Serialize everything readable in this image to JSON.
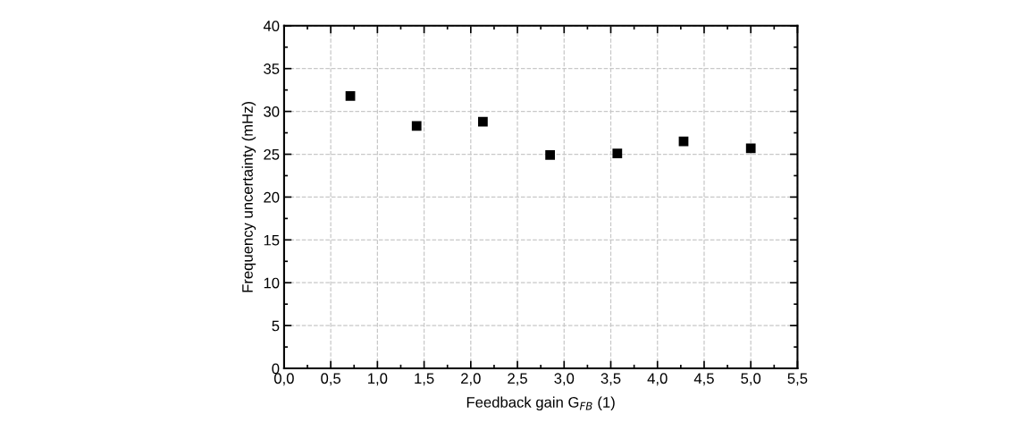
{
  "chart_data": {
    "type": "scatter",
    "xlabel": "Feedback gain G$_{FB}$ (1)",
    "ylabel": "Frequency uncertainty (mHz)",
    "x": [
      0.71,
      1.42,
      2.13,
      2.85,
      3.57,
      4.28,
      5.0
    ],
    "series": [
      {
        "color": "#000000",
        "values": [
          31.8,
          28.3,
          28.8,
          24.9,
          25.1,
          26.5,
          25.7
        ]
      }
    ],
    "marker": "square",
    "grid": true,
    "xlim": [
      0,
      5.5
    ],
    "ylim": [
      0,
      40
    ],
    "xticks": [
      {
        "value": 0,
        "label": "0,0"
      },
      {
        "value": 0.5,
        "label": "0,5"
      },
      {
        "value": 1,
        "label": "1,0"
      },
      {
        "value": 1.5,
        "label": "1,5"
      },
      {
        "value": 2,
        "label": "2,0"
      },
      {
        "value": 2.5,
        "label": "2,5"
      },
      {
        "value": 3,
        "label": "3,0"
      },
      {
        "value": 3.5,
        "label": "3,5"
      },
      {
        "value": 4,
        "label": "4,0"
      },
      {
        "value": 4.5,
        "label": "4,5"
      },
      {
        "value": 5,
        "label": "5,0"
      },
      {
        "value": 5.5,
        "label": "5,5"
      }
    ],
    "yticks": [
      0,
      5,
      10,
      15,
      20,
      25,
      30,
      35,
      40
    ]
  }
}
